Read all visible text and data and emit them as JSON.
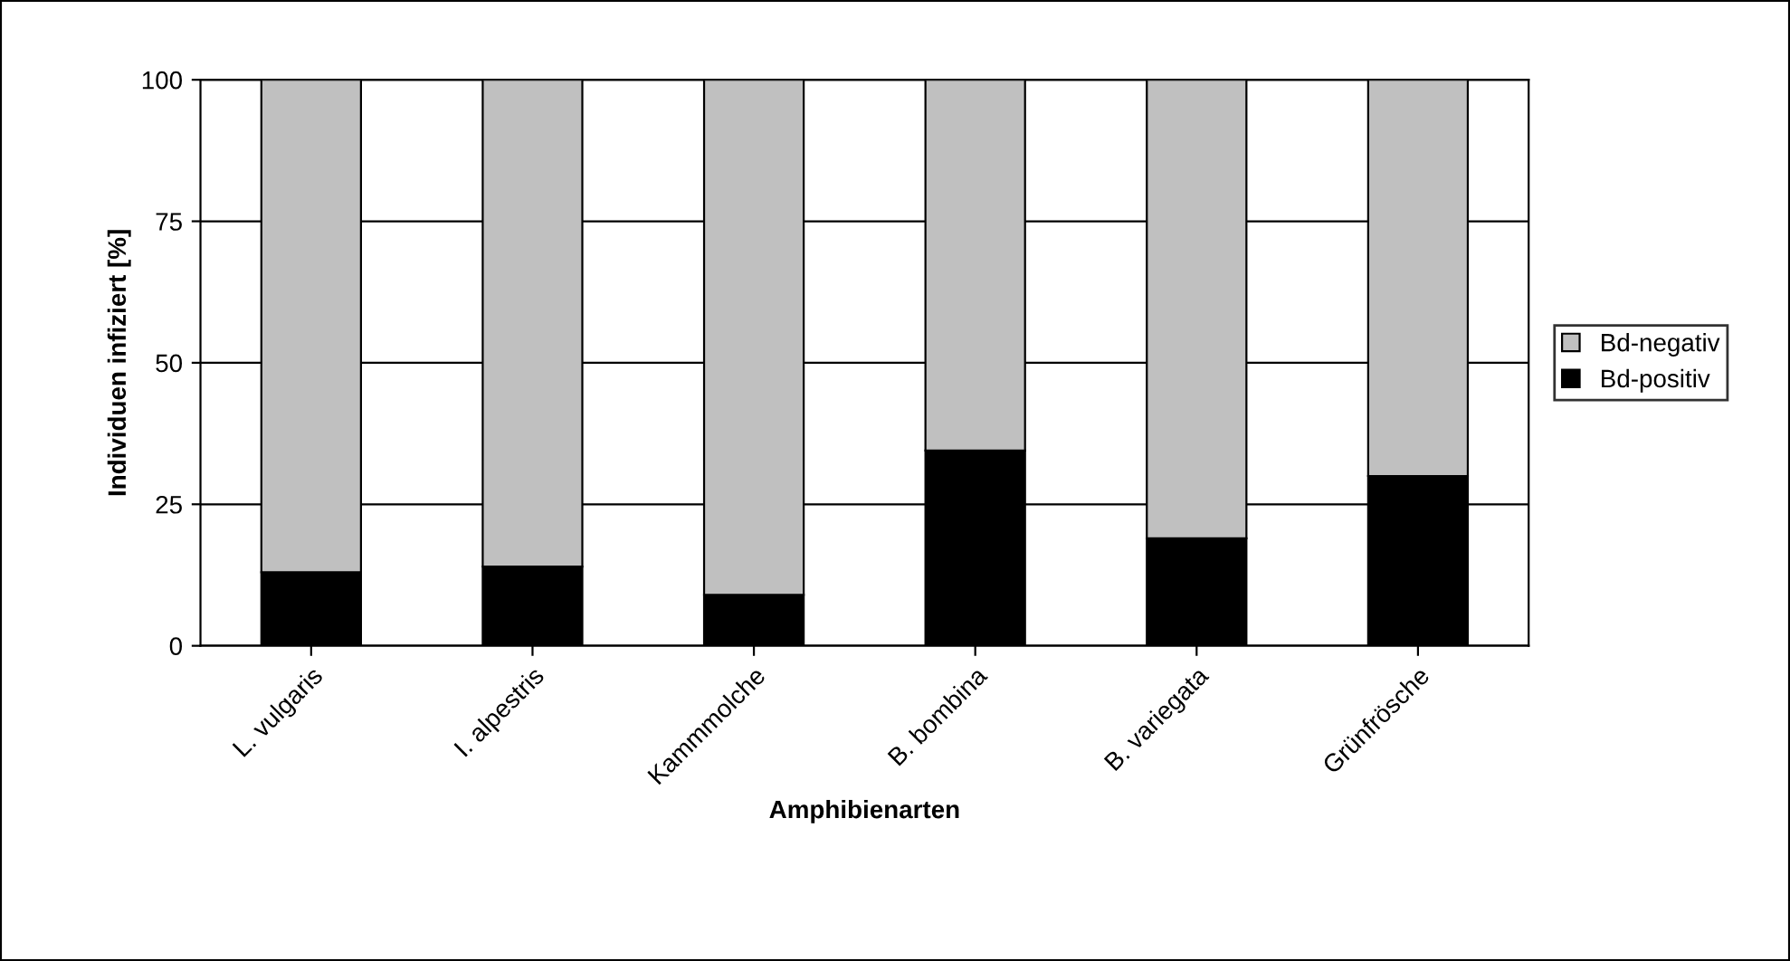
{
  "chart_data": {
    "type": "bar",
    "stacked": true,
    "xlabel": "Amphibienarten",
    "ylabel": "Individuen infiziert [%]",
    "categories": [
      "L. vulgaris",
      "I. alpestris",
      "Kammmolche",
      "B. bombina",
      "B. variegata",
      "Grünfrösche"
    ],
    "series": [
      {
        "name": "Bd-positiv",
        "color": "#000000",
        "values": [
          13,
          14,
          9,
          34.5,
          19,
          30
        ]
      },
      {
        "name": "Bd-negativ",
        "color": "#c0c0c0",
        "values": [
          87,
          86,
          91,
          65.5,
          81,
          70
        ]
      }
    ],
    "ylim": [
      0,
      100
    ],
    "yticks": [
      0,
      25,
      50,
      75,
      100
    ],
    "grid": "y",
    "legend": "right"
  }
}
